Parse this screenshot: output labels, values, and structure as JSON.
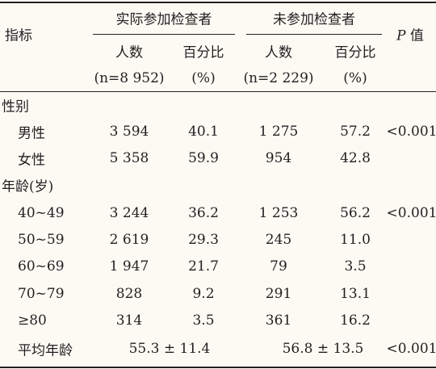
{
  "header": {
    "index": "指标",
    "group1": "实际参加检查者",
    "group2": "未参加检查者",
    "p_symbol": "P",
    "p_word": "值",
    "sub": [
      "人数",
      "百分比",
      "人数",
      "百分比"
    ],
    "sub2": [
      "(n=8 952)",
      "(%)",
      "(n=2 229)",
      "(%)"
    ]
  },
  "table": {
    "rows": [
      {
        "section": "性别"
      },
      {
        "label": "男性",
        "cells": [
          "3 594",
          "40.1",
          "1 275",
          "57.2"
        ],
        "p": "<0.001"
      },
      {
        "label": "女性",
        "cells": [
          "5 358",
          "59.9",
          "954",
          "42.8"
        ]
      },
      {
        "section": "年龄(岁)"
      },
      {
        "label": "40~49",
        "cells": [
          "3 244",
          "36.2",
          "1 253",
          "56.2"
        ],
        "p": "<0.001"
      },
      {
        "label": "50~59",
        "cells": [
          "2 619",
          "29.3",
          "245",
          "11.0"
        ]
      },
      {
        "label": "60~69",
        "cells": [
          "1 947",
          "21.7",
          "79",
          "3.5"
        ]
      },
      {
        "label": "70~79",
        "cells": [
          "828",
          "9.2",
          "291",
          "13.1"
        ]
      },
      {
        "label": "≥80",
        "cells": [
          "314",
          "3.5",
          "361",
          "16.2"
        ]
      },
      {
        "label": "平均年龄",
        "merged": [
          "55.3 ± 11.4",
          "56.8 ± 13.5"
        ],
        "p": "<0.001"
      }
    ]
  }
}
